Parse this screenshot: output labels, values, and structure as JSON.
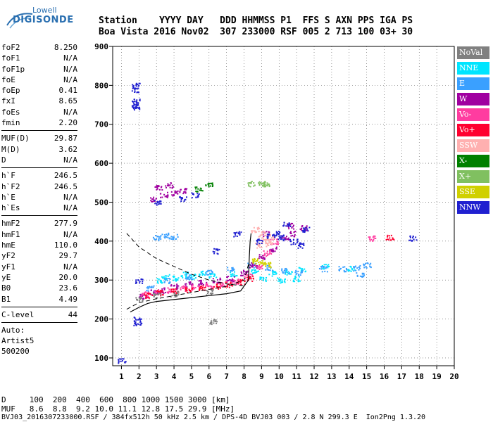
{
  "logo": {
    "line1": "Lowell",
    "line2": "DIGISONDE"
  },
  "header": {
    "line1": "Station    YYYY DAY   DDD HHMMSS P1  FFS S AXN PPS IGA PS",
    "line2": "Boa Vista 2016 Nov02  307 233000 RSF 005 2 713 100 03+ 30"
  },
  "params": {
    "group1": [
      [
        "foF2",
        "8.250"
      ],
      [
        "foF1",
        "N/A"
      ],
      [
        "foF1p",
        "N/A"
      ],
      [
        "foE",
        "N/A"
      ],
      [
        "foEp",
        "0.41"
      ],
      [
        "fxI",
        "8.65"
      ],
      [
        "foEs",
        "N/A"
      ],
      [
        "fmin",
        "2.20"
      ]
    ],
    "group2": [
      [
        "MUF(D)",
        "29.87"
      ],
      [
        "M(D)",
        "3.62"
      ],
      [
        "D",
        "N/A"
      ]
    ],
    "group3": [
      [
        "h`F",
        "246.5"
      ],
      [
        "h`F2",
        "246.5"
      ],
      [
        "h`E",
        "N/A"
      ],
      [
        "h`Es",
        "N/A"
      ]
    ],
    "group4": [
      [
        "hmF2",
        "277.9"
      ],
      [
        "hmF1",
        "N/A"
      ],
      [
        "hmE",
        "110.0"
      ],
      [
        "yF2",
        "29.7"
      ],
      [
        "yF1",
        "N/A"
      ],
      [
        "yE",
        "20.0"
      ],
      [
        "B0",
        "23.6"
      ],
      [
        "B1",
        "4.49"
      ]
    ],
    "group5": [
      [
        "C-level",
        "44"
      ]
    ],
    "auto": [
      "Auto:",
      "Artist5",
      "500200"
    ]
  },
  "footer": {
    "d_line": "D     100  200  400  600  800 1000 1500 3000 [km]",
    "muf_line": "MUF   8.6  8.8  9.2 10.0 11.1 12.8 17.5 29.9 [MHz]",
    "file_line": "BVJ03_2016307233000.RSF / 384fx512h 50 kHz 2.5 km / DPS-4D BVJ03 003 / 2.8 N 299.3 E  Ion2Png 1.3.20"
  },
  "legend": [
    {
      "label": "NoVal",
      "color": "#808080"
    },
    {
      "label": "NNE",
      "color": "#00e5ff"
    },
    {
      "label": "E",
      "color": "#3aa0ff"
    },
    {
      "label": "W",
      "color": "#a000a0"
    },
    {
      "label": "Vo-",
      "color": "#ff3ca0"
    },
    {
      "label": "Vo+",
      "color": "#ff0030"
    },
    {
      "label": "SSW",
      "color": "#ffb0b0"
    },
    {
      "label": "X-",
      "color": "#008000"
    },
    {
      "label": "X+",
      "color": "#80c060"
    },
    {
      "label": "SSE",
      "color": "#d0d000"
    },
    {
      "label": "NNW",
      "color": "#2020d0"
    }
  ],
  "chart_data": {
    "type": "scatter",
    "xlabel": "",
    "ylabel": "",
    "xlim": [
      0.5,
      20
    ],
    "ylim": [
      80,
      900
    ],
    "xticks": [
      "1",
      "2",
      "3",
      "4",
      "5",
      "6",
      "7",
      "8",
      "9",
      "10",
      "11",
      "12",
      "13",
      "14",
      "15",
      "16",
      "17",
      "18",
      "19",
      "20"
    ],
    "yticks": [
      "100",
      "200",
      "300",
      "400",
      "500",
      "600",
      "700",
      "800",
      "900"
    ],
    "grid": true,
    "series": [
      {
        "name": "NNE",
        "color": "#00e5ff",
        "points": [
          [
            3.2,
            300
          ],
          [
            4.1,
            305
          ],
          [
            5.0,
            310
          ],
          [
            6.2,
            312
          ],
          [
            7.4,
            318
          ],
          [
            8.6,
            322
          ],
          [
            9.6,
            318
          ],
          [
            10.5,
            322
          ],
          [
            11.3,
            330
          ],
          [
            12.6,
            335
          ],
          [
            14.1,
            330
          ],
          [
            3.5,
            310
          ],
          [
            4.6,
            315
          ],
          [
            5.6,
            318
          ],
          [
            9.1,
            305
          ],
          [
            10.1,
            300
          ],
          [
            11.0,
            305
          ]
        ]
      },
      {
        "name": "E",
        "color": "#3aa0ff",
        "points": [
          [
            3.0,
            410
          ],
          [
            3.5,
            415
          ],
          [
            4.0,
            412
          ],
          [
            2.6,
            280
          ],
          [
            3.6,
            300
          ],
          [
            4.8,
            310
          ],
          [
            6.0,
            320
          ],
          [
            7.2,
            330
          ],
          [
            8.4,
            340
          ],
          [
            9.4,
            332
          ],
          [
            10.3,
            325
          ],
          [
            11.1,
            320
          ],
          [
            12.5,
            330
          ],
          [
            13.6,
            330
          ],
          [
            14.4,
            332
          ],
          [
            15.0,
            340
          ],
          [
            14.6,
            315
          ]
        ]
      },
      {
        "name": "W",
        "color": "#a000a0",
        "points": [
          [
            2.2,
            260
          ],
          [
            2.8,
            270
          ],
          [
            3.3,
            275
          ],
          [
            4.0,
            285
          ],
          [
            4.8,
            290
          ],
          [
            5.6,
            295
          ],
          [
            6.4,
            300
          ],
          [
            7.2,
            305
          ],
          [
            8.0,
            320
          ],
          [
            8.5,
            340
          ],
          [
            9.0,
            360
          ],
          [
            9.6,
            380
          ],
          [
            10.3,
            410
          ],
          [
            10.8,
            420
          ],
          [
            2.8,
            510
          ],
          [
            3.4,
            520
          ],
          [
            4.0,
            525
          ],
          [
            4.5,
            530
          ],
          [
            3.1,
            540
          ],
          [
            3.7,
            545
          ],
          [
            9.2,
            420
          ],
          [
            10.6,
            440
          ],
          [
            11.4,
            435
          ]
        ]
      },
      {
        "name": "Vo-",
        "color": "#ff3ca0",
        "points": [
          [
            2.3,
            265
          ],
          [
            3.0,
            270
          ],
          [
            3.8,
            275
          ],
          [
            4.5,
            280
          ],
          [
            5.2,
            283
          ],
          [
            6.0,
            287
          ],
          [
            6.8,
            292
          ],
          [
            7.5,
            298
          ],
          [
            8.2,
            310
          ],
          [
            8.8,
            335
          ],
          [
            9.3,
            370
          ],
          [
            9.7,
            400
          ],
          [
            15.3,
            408
          ]
        ]
      },
      {
        "name": "Vo+",
        "color": "#ff0030",
        "points": [
          [
            2.5,
            262
          ],
          [
            3.2,
            268
          ],
          [
            4.0,
            272
          ],
          [
            4.8,
            276
          ],
          [
            5.6,
            280
          ],
          [
            6.4,
            285
          ],
          [
            7.1,
            290
          ],
          [
            7.8,
            296
          ],
          [
            8.3,
            305
          ],
          [
            16.3,
            410
          ]
        ]
      },
      {
        "name": "SSW",
        "color": "#ffb0b0",
        "points": [
          [
            8.8,
            390
          ],
          [
            9.2,
            405
          ],
          [
            9.6,
            412
          ],
          [
            9.0,
            420
          ],
          [
            8.6,
            430
          ],
          [
            9.4,
            395
          ]
        ]
      },
      {
        "name": "X-",
        "color": "#008000",
        "points": [
          [
            5.4,
            535
          ],
          [
            6.0,
            545
          ]
        ]
      },
      {
        "name": "X+",
        "color": "#80c060",
        "points": [
          [
            8.4,
            548
          ],
          [
            9.2,
            548
          ],
          [
            9.0,
            550
          ]
        ]
      },
      {
        "name": "SSE",
        "color": "#d0d000",
        "points": [
          [
            8.6,
            350
          ],
          [
            9.0,
            345
          ],
          [
            9.3,
            340
          ]
        ]
      },
      {
        "name": "NNW",
        "color": "#2020d0",
        "points": [
          [
            1.8,
            800
          ],
          [
            1.8,
            790
          ],
          [
            1.8,
            760
          ],
          [
            1.8,
            750
          ],
          [
            1.8,
            745
          ],
          [
            1.9,
            200
          ],
          [
            1.9,
            190
          ],
          [
            1.95,
            300
          ],
          [
            1.0,
            95
          ],
          [
            3.0,
            500
          ],
          [
            4.5,
            510
          ],
          [
            5.2,
            520
          ],
          [
            9.8,
            420
          ],
          [
            10.4,
            445
          ],
          [
            11.5,
            430
          ],
          [
            8.9,
            400
          ],
          [
            9.5,
            415
          ],
          [
            10.1,
            410
          ],
          [
            10.8,
            400
          ],
          [
            11.2,
            390
          ],
          [
            17.6,
            408
          ],
          [
            6.4,
            375
          ],
          [
            7.6,
            420
          ]
        ]
      },
      {
        "name": "NoVal",
        "color": "#808080",
        "points": [
          [
            2.0,
            255
          ],
          [
            3.0,
            262
          ],
          [
            4.0,
            265
          ],
          [
            6.0,
            270
          ],
          [
            6.2,
            195
          ]
        ]
      }
    ],
    "trace_curve": [
      [
        1.5,
        218
      ],
      [
        2.0,
        230
      ],
      [
        2.5,
        240
      ],
      [
        3.0,
        245
      ],
      [
        4.0,
        250
      ],
      [
        5.0,
        255
      ],
      [
        6.0,
        260
      ],
      [
        7.0,
        265
      ],
      [
        7.8,
        272
      ],
      [
        8.25,
        300
      ],
      [
        8.3,
        360
      ],
      [
        8.35,
        400
      ],
      [
        8.4,
        420
      ]
    ],
    "dashed_lower": [
      [
        1.3,
        225
      ],
      [
        2.0,
        242
      ],
      [
        3.0,
        252
      ],
      [
        4.0,
        260
      ],
      [
        5.0,
        268
      ],
      [
        6.0,
        276
      ],
      [
        7.0,
        284
      ],
      [
        8.0,
        300
      ],
      [
        8.25,
        340
      ]
    ],
    "dashed_upper": [
      [
        1.3,
        420
      ],
      [
        2.0,
        385
      ],
      [
        3.0,
        355
      ],
      [
        4.0,
        335
      ],
      [
        5.0,
        315
      ],
      [
        6.0,
        300
      ],
      [
        7.0,
        290
      ],
      [
        8.0,
        285
      ]
    ]
  }
}
